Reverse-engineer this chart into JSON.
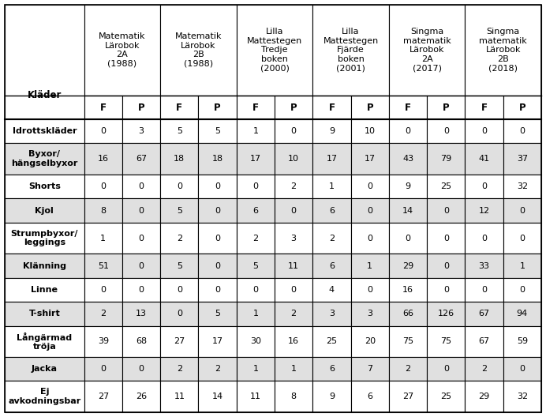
{
  "col_groups": [
    {
      "label": "Matematik\nLärobok\n2A\n(1988)",
      "span": 2
    },
    {
      "label": "Matematik\nLärobok\n2B\n(1988)",
      "span": 2
    },
    {
      "label": "Lilla\nMattestegen\nTredje\nboken\n(2000)",
      "span": 2
    },
    {
      "label": "Lilla\nMattestegen\nFjärde\nboken\n(2001)",
      "span": 2
    },
    {
      "label": "Singma\nmatematik\nLärobok\n2A\n(2017)",
      "span": 2
    },
    {
      "label": "Singma\nmatematik\nLärobok\n2B\n(2018)",
      "span": 2
    }
  ],
  "row_header": "Kläder",
  "sub_headers": [
    "F",
    "P",
    "F",
    "P",
    "F",
    "P",
    "F",
    "P",
    "F",
    "P",
    "F",
    "P"
  ],
  "rows": [
    {
      "label": "Idrottskläder",
      "label2": null,
      "values": [
        0,
        3,
        5,
        5,
        1,
        0,
        9,
        10,
        0,
        0,
        0,
        0
      ]
    },
    {
      "label": "Byxor/",
      "label2": "hängselbyxor",
      "values": [
        16,
        67,
        18,
        18,
        17,
        10,
        17,
        17,
        43,
        79,
        41,
        37
      ]
    },
    {
      "label": "Shorts",
      "label2": null,
      "values": [
        0,
        0,
        0,
        0,
        0,
        2,
        1,
        0,
        9,
        25,
        0,
        32
      ]
    },
    {
      "label": "Kjol",
      "label2": null,
      "values": [
        8,
        0,
        5,
        0,
        6,
        0,
        6,
        0,
        14,
        0,
        12,
        0
      ]
    },
    {
      "label": "Strumpbyxor/",
      "label2": "leggings",
      "values": [
        1,
        0,
        2,
        0,
        2,
        3,
        2,
        0,
        0,
        0,
        0,
        0
      ]
    },
    {
      "label": "Klänning",
      "label2": null,
      "values": [
        51,
        0,
        5,
        0,
        5,
        11,
        6,
        1,
        29,
        0,
        33,
        1
      ]
    },
    {
      "label": "Linne",
      "label2": null,
      "values": [
        0,
        0,
        0,
        0,
        0,
        0,
        4,
        0,
        16,
        0,
        0,
        0
      ]
    },
    {
      "label": "T-shirt",
      "label2": null,
      "values": [
        2,
        13,
        0,
        5,
        1,
        2,
        3,
        3,
        66,
        126,
        67,
        94
      ]
    },
    {
      "label": "Långärmad",
      "label2": "tröja",
      "values": [
        39,
        68,
        27,
        17,
        30,
        16,
        25,
        20,
        75,
        75,
        67,
        59
      ]
    },
    {
      "label": "Jacka",
      "label2": null,
      "values": [
        0,
        0,
        2,
        2,
        1,
        1,
        6,
        7,
        2,
        0,
        2,
        0
      ]
    },
    {
      "label": "Ej",
      "label2": "avkodningsbar",
      "values": [
        27,
        26,
        11,
        14,
        11,
        8,
        9,
        6,
        27,
        25,
        29,
        32
      ]
    }
  ],
  "bg_white": "#ffffff",
  "bg_gray": "#e0e0e0",
  "line_color": "#000000",
  "text_color": "#000000",
  "font_size": 8.0,
  "header_font_size": 8.0,
  "subheader_font_size": 8.5,
  "figwidth": 6.92,
  "figheight": 5.28,
  "dpi": 100
}
